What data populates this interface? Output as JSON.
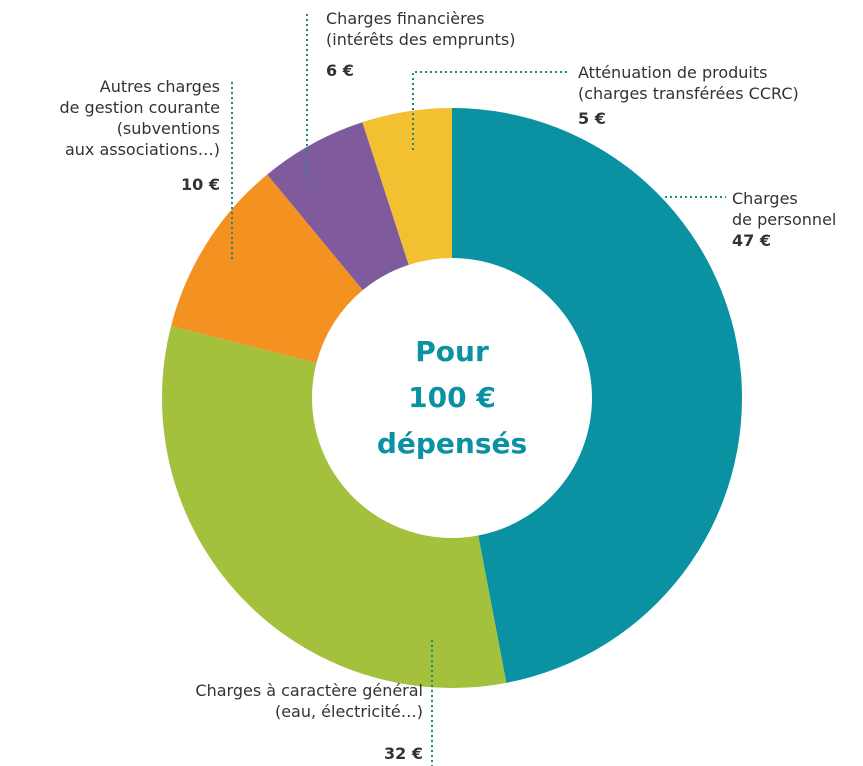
{
  "chart_data": {
    "type": "donut",
    "center_label": [
      "Pour",
      "100 €",
      "dépensés"
    ],
    "categories": [
      "Charges\nde personnel",
      "Charges à caractère général\n(eau, électricité…)",
      "Autres charges\nde gestion courante\n(subventions\naux associations…)",
      "Charges financières\n(intérêts des emprunts)",
      "Atténuation de produits\n(charges transférées CCRC)"
    ],
    "values": [
      47,
      32,
      10,
      6,
      5
    ],
    "value_labels": [
      "47 €",
      "32 €",
      "10 €",
      "6 €",
      "5 €"
    ],
    "colors": [
      "#0a91a2",
      "#a3c13d",
      "#f39221",
      "#7f5b9d",
      "#f2c031"
    ]
  }
}
